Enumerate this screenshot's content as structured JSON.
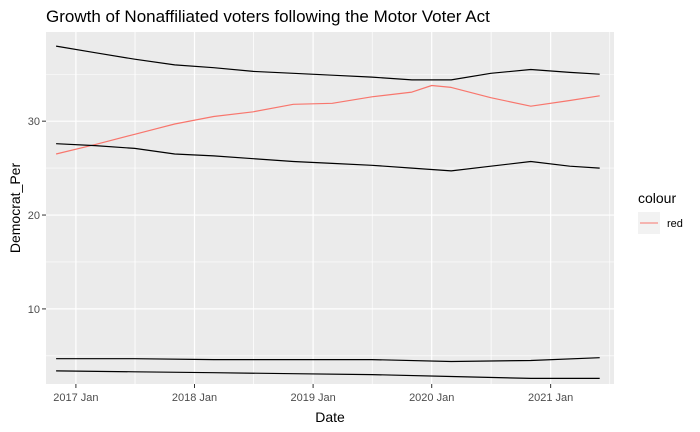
{
  "chart_data": {
    "type": "line",
    "title": "Growth of Nonaffiliated voters following the Motor Voter Act",
    "xlabel": "Date",
    "ylabel": "Democrat_Per",
    "x_tick_labels": [
      "2017 Jan",
      "2018 Jan",
      "2019 Jan",
      "2020 Jan",
      "2021 Jan"
    ],
    "y_ticks": [
      10,
      20,
      30
    ],
    "xlim": [
      "2016-10-01",
      "2021-07-15"
    ],
    "ylim": [
      2.0,
      39.5
    ],
    "grid": true,
    "background": "#ebebeb",
    "legend": {
      "title": "colour",
      "position": "right",
      "entries": [
        {
          "label": "red",
          "color": "#f8766d"
        }
      ]
    },
    "series": [
      {
        "color": "#000000",
        "x": [
          "2016-11-01",
          "2017-03-01",
          "2017-07-01",
          "2017-11-01",
          "2018-03-01",
          "2018-07-01",
          "2018-11-01",
          "2019-03-01",
          "2019-07-01",
          "2019-11-01",
          "2020-03-01",
          "2020-07-01",
          "2020-11-01",
          "2021-03-01",
          "2021-06-01"
        ],
        "y": [
          38.0,
          37.3,
          36.6,
          36.0,
          35.7,
          35.3,
          35.1,
          34.9,
          34.7,
          34.4,
          34.4,
          35.1,
          35.5,
          35.2,
          35.0
        ]
      },
      {
        "color": "#f8766d",
        "x": [
          "2016-11-01",
          "2017-03-01",
          "2017-07-01",
          "2017-11-01",
          "2018-03-01",
          "2018-07-01",
          "2018-11-01",
          "2019-03-01",
          "2019-07-01",
          "2019-11-01",
          "2020-01-01",
          "2020-03-01",
          "2020-07-01",
          "2020-11-01",
          "2021-03-01",
          "2021-06-01"
        ],
        "y": [
          26.5,
          27.5,
          28.6,
          29.7,
          30.5,
          31.0,
          31.8,
          31.9,
          32.6,
          33.1,
          33.8,
          33.6,
          32.5,
          31.6,
          32.2,
          32.7
        ]
      },
      {
        "color": "#000000",
        "x": [
          "2016-11-01",
          "2017-03-01",
          "2017-07-01",
          "2017-11-01",
          "2018-03-01",
          "2018-07-01",
          "2018-11-01",
          "2019-03-01",
          "2019-07-01",
          "2019-11-01",
          "2020-03-01",
          "2020-07-01",
          "2020-11-01",
          "2021-03-01",
          "2021-06-01"
        ],
        "y": [
          27.6,
          27.4,
          27.1,
          26.5,
          26.3,
          26.0,
          25.7,
          25.5,
          25.3,
          25.0,
          24.7,
          25.2,
          25.7,
          25.2,
          25.0
        ]
      },
      {
        "color": "#000000",
        "x": [
          "2016-11-01",
          "2017-07-01",
          "2018-03-01",
          "2018-11-01",
          "2019-07-01",
          "2020-03-01",
          "2020-11-01",
          "2021-06-01"
        ],
        "y": [
          4.7,
          4.7,
          4.6,
          4.6,
          4.6,
          4.4,
          4.5,
          4.8
        ]
      },
      {
        "color": "#000000",
        "x": [
          "2016-11-01",
          "2017-07-01",
          "2018-03-01",
          "2018-11-01",
          "2019-07-01",
          "2020-03-01",
          "2020-11-01",
          "2021-06-01"
        ],
        "y": [
          3.4,
          3.3,
          3.2,
          3.1,
          3.0,
          2.8,
          2.6,
          2.6
        ]
      }
    ]
  }
}
